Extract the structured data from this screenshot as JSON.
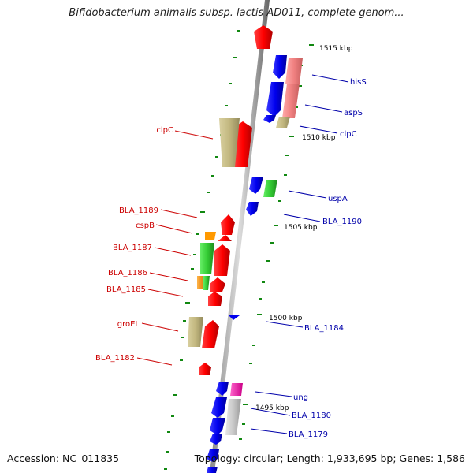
{
  "title": "Bifidobacterium animalis subsp. lactis AD011, complete genom...",
  "accession": "Accession: NC_011835",
  "topology": "Topology: circular; Length: 1,933,695 bp; Genes: 1,586",
  "scale_labels": [
    "1515 kbp",
    "1510 kbp",
    "1505 kbp",
    "1500 kbp",
    "1495 kbp"
  ],
  "gene_labels": {
    "forward": [
      "clpC",
      "BLA_1189",
      "cspB",
      "BLA_1187",
      "BLA_1186",
      "BLA_1185",
      "groEL",
      "BLA_1182"
    ],
    "reverse": [
      "hisS",
      "aspS",
      "clpC",
      "uspA",
      "BLA_1190",
      "BLA_1184",
      "ung",
      "BLA_1180",
      "BLA_1179"
    ]
  },
  "colors": {
    "forward_label": "#cc0000",
    "reverse_label": "#0000aa",
    "forward_gene": "#ff0000",
    "reverse_gene": "#0000ee",
    "gc_skew_green": "#118811"
  }
}
